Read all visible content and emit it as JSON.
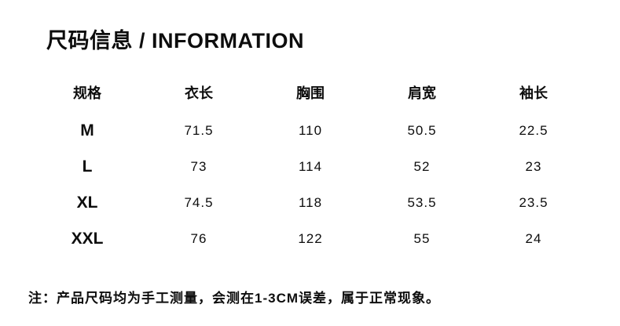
{
  "chart_data": {
    "type": "table",
    "title": "尺码信息 / INFORMATION",
    "columns": [
      "规格",
      "衣长",
      "胸围",
      "肩宽",
      "袖长"
    ],
    "rows": [
      [
        "M",
        "71.5",
        "110",
        "50.5",
        "22.5"
      ],
      [
        "L",
        "73",
        "114",
        "52",
        "23"
      ],
      [
        "XL",
        "74.5",
        "118",
        "53.5",
        "23.5"
      ],
      [
        "XXL",
        "76",
        "122",
        "55",
        "24"
      ]
    ],
    "note": "注：产品尺码均为手工测量，会测在1-3CM误差，属于正常现象。",
    "layout": {
      "legend": "none",
      "grid": "off",
      "text_color": "#0d0d0d",
      "background_color": "#ffffff"
    }
  }
}
